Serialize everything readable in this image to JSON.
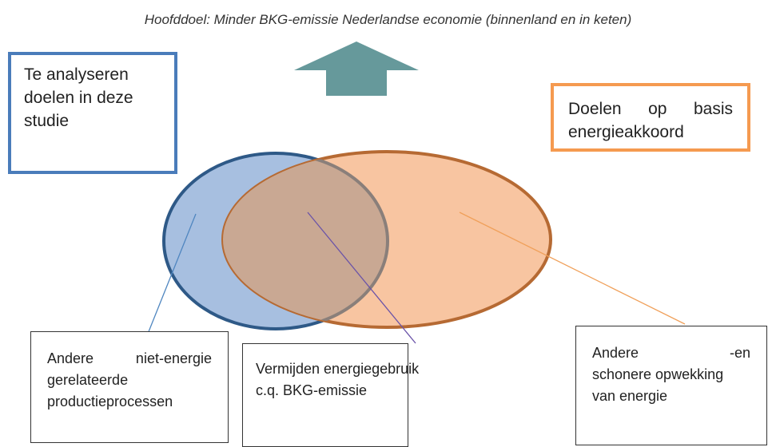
{
  "title": "Hoofddoel: Minder BKG-emissie Nederlandse economie (binnenland en in keten)",
  "left_goal": {
    "lines": [
      "Te analyseren",
      "doelen in deze",
      "studie"
    ]
  },
  "right_goal": {
    "lines": [
      "Doelen op basis",
      "energieakkoord"
    ]
  },
  "boxes": [
    {
      "lines": [
        "Andere niet-energie",
        "gerelateerde",
        "productieprocessen"
      ]
    },
    {
      "lines": [
        "Vermijden energiegebruik",
        "c.q. BKG-emissie"
      ]
    },
    {
      "lines": [
        "Andere -en",
        "schonere opwekking",
        "van energie"
      ]
    }
  ]
}
